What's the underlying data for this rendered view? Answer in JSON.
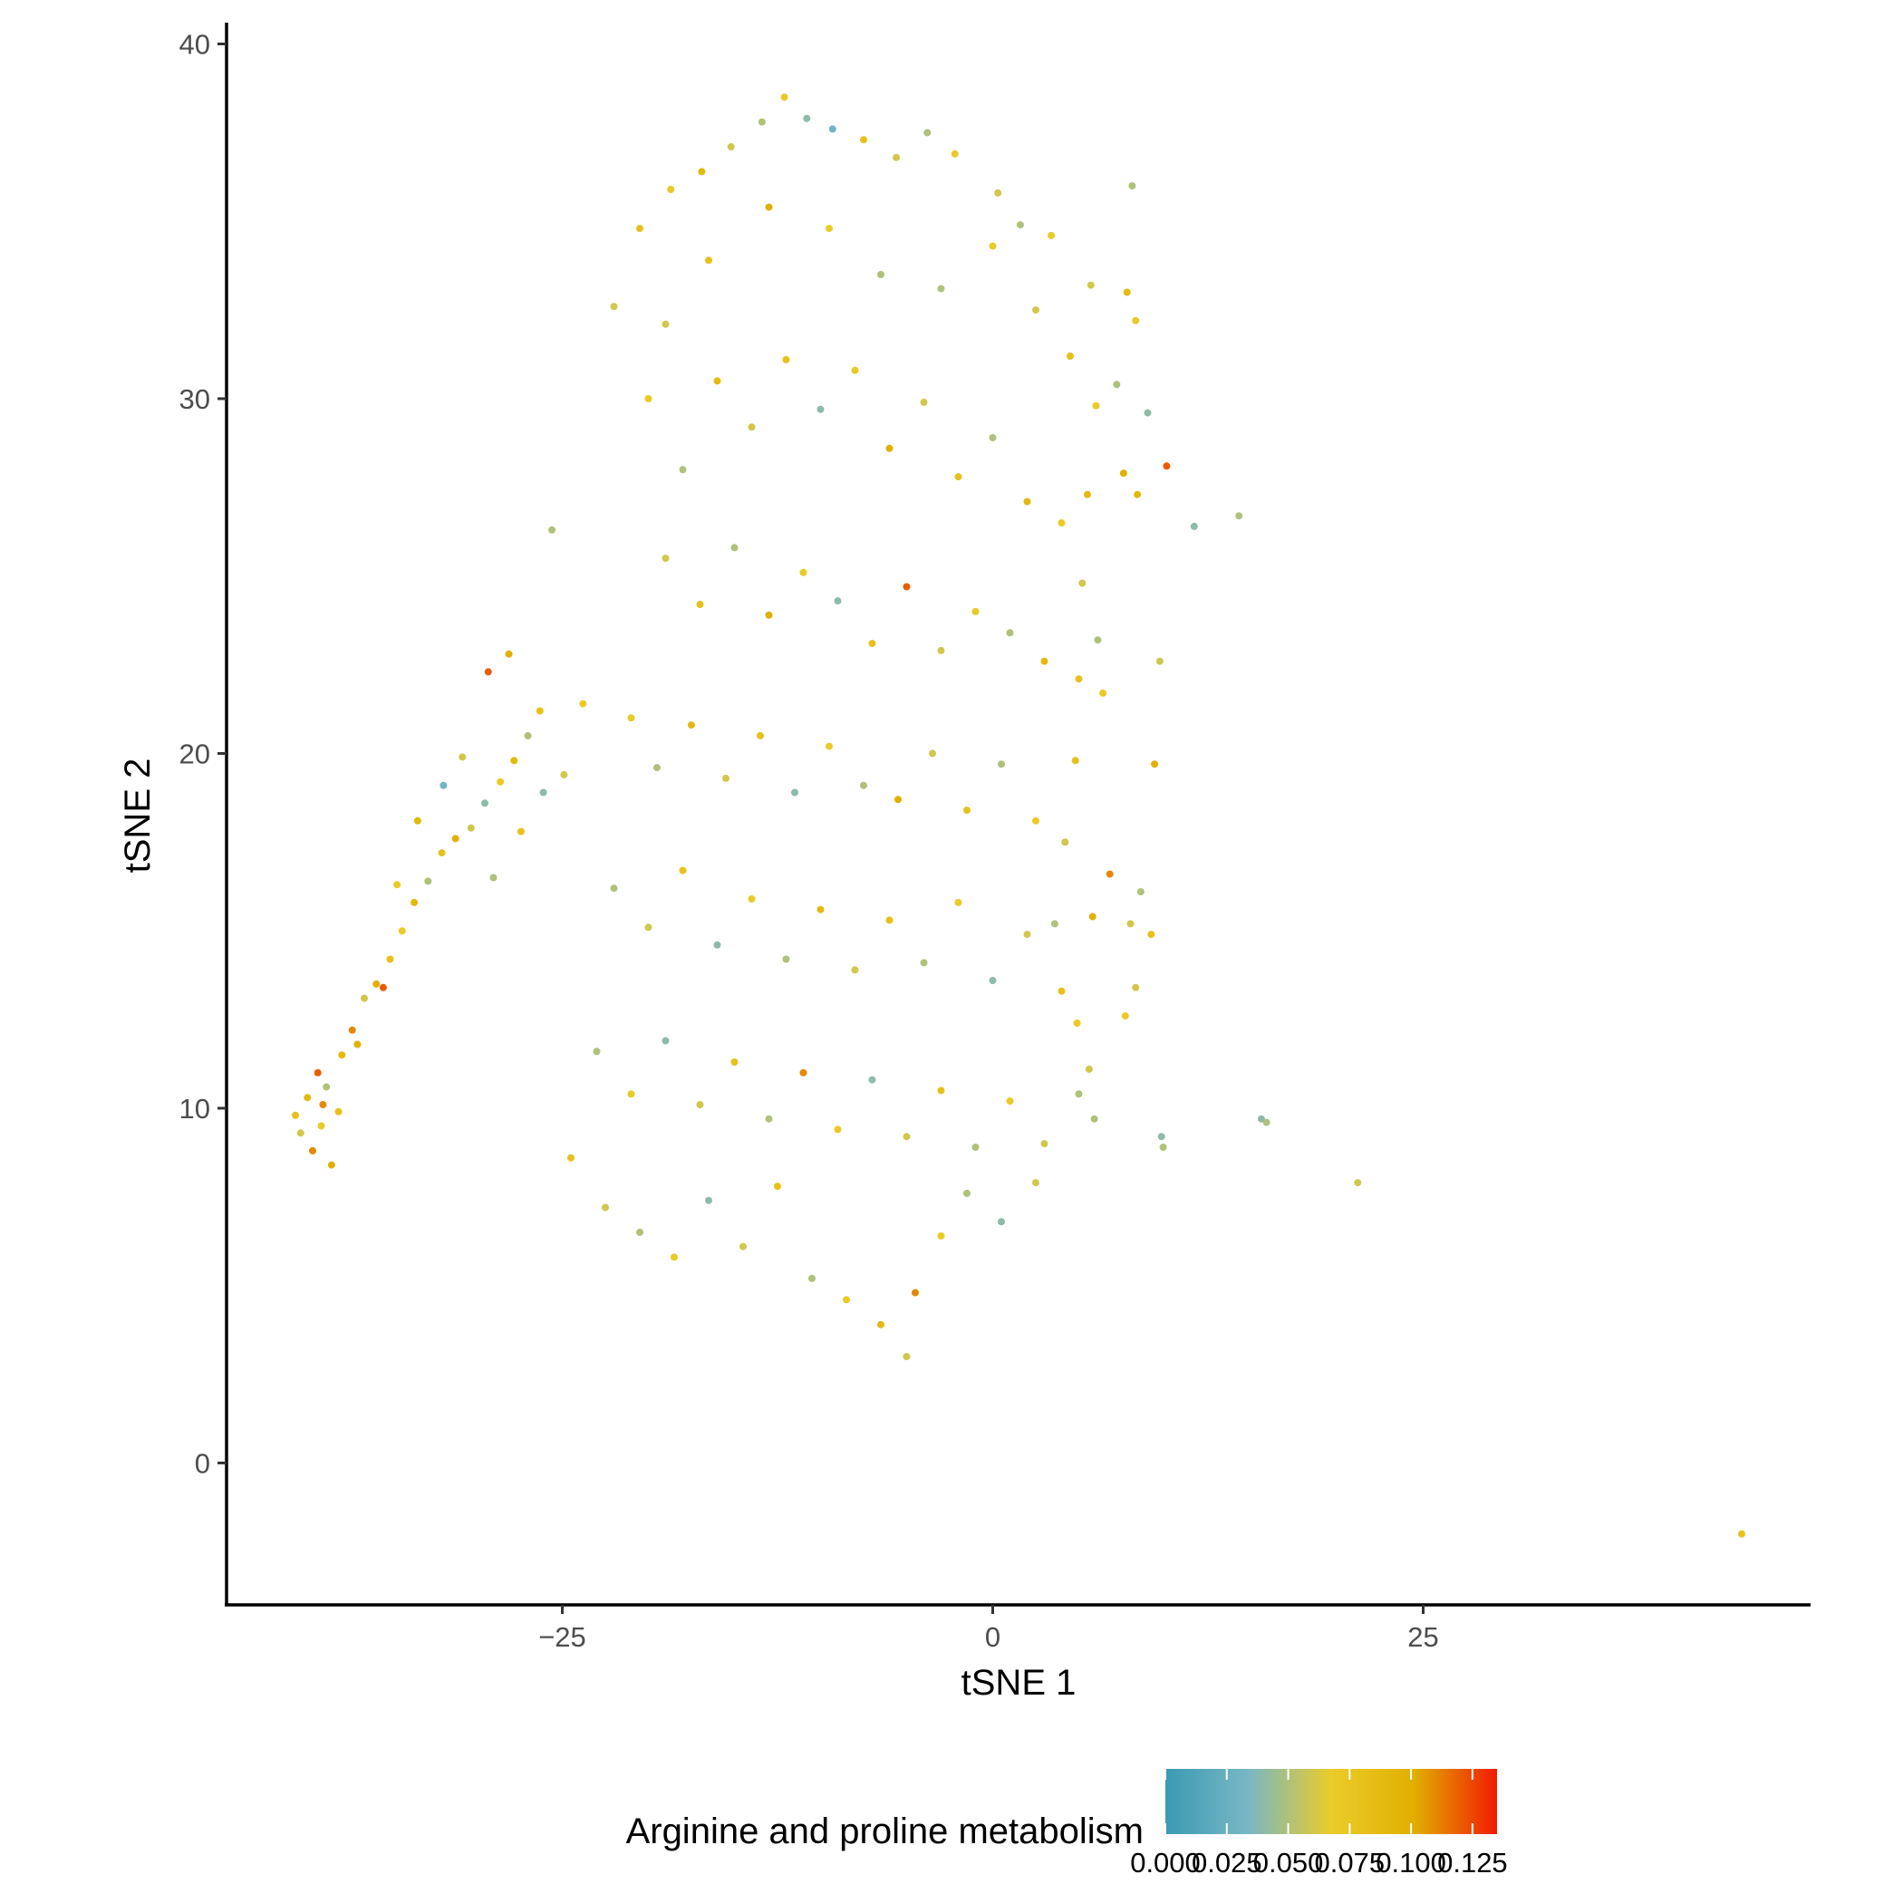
{
  "chart_data": {
    "type": "scatter",
    "title": "",
    "xlabel": "tSNE 1",
    "ylabel": "tSNE 2",
    "xlim": [
      -44.5,
      47.5
    ],
    "ylim": [
      -4,
      40.6
    ],
    "x_ticks": [
      {
        "value": -25,
        "label": "−25"
      },
      {
        "value": 0,
        "label": "0"
      },
      {
        "value": 25,
        "label": "25"
      }
    ],
    "y_ticks": [
      {
        "value": 0,
        "label": "0"
      },
      {
        "value": 10,
        "label": "10"
      },
      {
        "value": 20,
        "label": "20"
      },
      {
        "value": 30,
        "label": "30"
      },
      {
        "value": 40,
        "label": "40"
      }
    ],
    "grid": false,
    "legend": {
      "title": "Arginine and proline metabolism",
      "placement": "bottom",
      "type": "colorbar",
      "range": [
        0.0,
        0.135
      ],
      "ticks": [
        {
          "value": 0.0,
          "label": "0.000"
        },
        {
          "value": 0.025,
          "label": "0.025"
        },
        {
          "value": 0.05,
          "label": "0.050"
        },
        {
          "value": 0.075,
          "label": "0.075"
        },
        {
          "value": 0.1,
          "label": "0.100"
        },
        {
          "value": 0.125,
          "label": "0.125"
        }
      ],
      "colors": [
        "#3B9AB2",
        "#78B7C5",
        "#EBCC2A",
        "#E1AF00",
        "#F21A00"
      ]
    },
    "points": [
      [
        -40.5,
        9.8,
        0.08
      ],
      [
        -40.2,
        9.3,
        0.06
      ],
      [
        -39.8,
        10.3,
        0.09
      ],
      [
        -39.5,
        8.8,
        0.11
      ],
      [
        -39.0,
        9.5,
        0.07
      ],
      [
        -38.7,
        10.6,
        0.05
      ],
      [
        -38.4,
        8.4,
        0.1
      ],
      [
        -38.0,
        9.9,
        0.08
      ],
      [
        -39.2,
        11.0,
        0.12
      ],
      [
        -37.8,
        11.5,
        0.09
      ],
      [
        -37.2,
        12.2,
        0.11
      ],
      [
        -36.5,
        13.1,
        0.06
      ],
      [
        -35.8,
        13.5,
        0.1
      ],
      [
        -35.0,
        14.2,
        0.08
      ],
      [
        -34.3,
        15.0,
        0.07
      ],
      [
        -33.6,
        15.8,
        0.09
      ],
      [
        -32.8,
        16.4,
        0.05
      ],
      [
        -32.0,
        17.2,
        0.08
      ],
      [
        -31.2,
        17.6,
        0.1
      ],
      [
        -30.3,
        17.9,
        0.06
      ],
      [
        -29.5,
        18.6,
        0.04
      ],
      [
        -28.6,
        19.2,
        0.07
      ],
      [
        -27.8,
        19.8,
        0.09
      ],
      [
        -27.0,
        20.5,
        0.05
      ],
      [
        -26.3,
        21.2,
        0.08
      ],
      [
        -28.1,
        22.8,
        0.1
      ],
      [
        -29.3,
        22.3,
        0.12
      ],
      [
        -30.8,
        19.9,
        0.06
      ],
      [
        -31.9,
        19.1,
        0.03
      ],
      [
        -33.4,
        18.1,
        0.09
      ],
      [
        -34.6,
        16.3,
        0.07
      ],
      [
        -35.4,
        13.4,
        0.12
      ],
      [
        -36.9,
        11.8,
        0.1
      ],
      [
        -38.9,
        10.1,
        0.11
      ],
      [
        -29.0,
        16.5,
        0.05
      ],
      [
        -27.4,
        17.8,
        0.08
      ],
      [
        -26.1,
        18.9,
        0.04
      ],
      [
        -24.9,
        19.4,
        0.06
      ],
      [
        -23.8,
        21.4,
        0.07
      ],
      [
        -25.6,
        26.3,
        0.05
      ],
      [
        -22.0,
        32.6,
        0.06
      ],
      [
        -20.5,
        34.8,
        0.08
      ],
      [
        -18.7,
        35.9,
        0.07
      ],
      [
        -16.9,
        36.4,
        0.09
      ],
      [
        -15.2,
        37.1,
        0.06
      ],
      [
        -13.4,
        37.8,
        0.05
      ],
      [
        -12.1,
        38.5,
        0.07
      ],
      [
        -10.8,
        37.9,
        0.04
      ],
      [
        -9.3,
        37.6,
        0.03
      ],
      [
        -7.5,
        37.3,
        0.08
      ],
      [
        -5.6,
        36.8,
        0.06
      ],
      [
        -3.8,
        37.5,
        0.05
      ],
      [
        -2.2,
        36.9,
        0.07
      ],
      [
        0.3,
        35.8,
        0.06
      ],
      [
        1.6,
        34.9,
        0.05
      ],
      [
        3.4,
        34.6,
        0.07
      ],
      [
        5.7,
        33.2,
        0.06
      ],
      [
        7.8,
        33.0,
        0.09
      ],
      [
        8.3,
        32.2,
        0.07
      ],
      [
        8.1,
        36.0,
        0.05
      ],
      [
        7.2,
        30.4,
        0.05
      ],
      [
        9.0,
        29.6,
        0.04
      ],
      [
        7.6,
        27.9,
        0.1
      ],
      [
        8.4,
        27.3,
        0.09
      ],
      [
        10.1,
        28.1,
        0.12
      ],
      [
        11.7,
        26.4,
        0.04
      ],
      [
        14.3,
        26.7,
        0.05
      ],
      [
        9.7,
        22.6,
        0.06
      ],
      [
        9.4,
        19.7,
        0.1
      ],
      [
        8.0,
        15.2,
        0.06
      ],
      [
        8.6,
        16.1,
        0.05
      ],
      [
        9.2,
        14.9,
        0.08
      ],
      [
        8.3,
        13.4,
        0.06
      ],
      [
        7.7,
        12.6,
        0.07
      ],
      [
        6.8,
        16.6,
        0.11
      ],
      [
        5.8,
        15.4,
        0.1
      ],
      [
        9.8,
        9.2,
        0.04
      ],
      [
        9.9,
        8.9,
        0.05
      ],
      [
        15.6,
        9.7,
        0.04
      ],
      [
        15.9,
        9.6,
        0.05
      ],
      [
        21.2,
        7.9,
        0.06
      ],
      [
        43.5,
        -2.0,
        0.08
      ],
      [
        -20.0,
        30.0,
        0.07
      ],
      [
        -18.0,
        28.0,
        0.05
      ],
      [
        -16.0,
        30.5,
        0.09
      ],
      [
        -14.0,
        29.2,
        0.06
      ],
      [
        -12.0,
        31.1,
        0.08
      ],
      [
        -10.0,
        29.7,
        0.04
      ],
      [
        -8.0,
        30.8,
        0.07
      ],
      [
        -6.0,
        28.6,
        0.1
      ],
      [
        -4.0,
        29.9,
        0.06
      ],
      [
        -2.0,
        27.8,
        0.08
      ],
      [
        0.0,
        28.9,
        0.05
      ],
      [
        2.0,
        27.1,
        0.09
      ],
      [
        4.0,
        26.5,
        0.07
      ],
      [
        -19.0,
        25.5,
        0.06
      ],
      [
        -17.0,
        24.2,
        0.08
      ],
      [
        -15.0,
        25.8,
        0.05
      ],
      [
        -13.0,
        23.9,
        0.1
      ],
      [
        -11.0,
        25.1,
        0.07
      ],
      [
        -9.0,
        24.3,
        0.04
      ],
      [
        -7.0,
        23.1,
        0.08
      ],
      [
        -5.0,
        24.7,
        0.12
      ],
      [
        -3.0,
        22.9,
        0.06
      ],
      [
        -1.0,
        24.0,
        0.07
      ],
      [
        1.0,
        23.4,
        0.05
      ],
      [
        3.0,
        22.6,
        0.09
      ],
      [
        5.0,
        22.1,
        0.08
      ],
      [
        -21.0,
        21.0,
        0.07
      ],
      [
        -19.5,
        19.6,
        0.05
      ],
      [
        -17.5,
        20.8,
        0.09
      ],
      [
        -15.5,
        19.3,
        0.06
      ],
      [
        -13.5,
        20.5,
        0.08
      ],
      [
        -11.5,
        18.9,
        0.04
      ],
      [
        -9.5,
        20.2,
        0.07
      ],
      [
        -7.5,
        19.1,
        0.05
      ],
      [
        -5.5,
        18.7,
        0.1
      ],
      [
        -3.5,
        20.0,
        0.06
      ],
      [
        -1.5,
        18.4,
        0.08
      ],
      [
        0.5,
        19.7,
        0.05
      ],
      [
        2.5,
        18.1,
        0.07
      ],
      [
        -22.0,
        16.2,
        0.05
      ],
      [
        -20.0,
        15.1,
        0.06
      ],
      [
        -18.0,
        16.7,
        0.08
      ],
      [
        -16.0,
        14.6,
        0.04
      ],
      [
        -14.0,
        15.9,
        0.07
      ],
      [
        -12.0,
        14.2,
        0.05
      ],
      [
        -10.0,
        15.6,
        0.09
      ],
      [
        -8.0,
        13.9,
        0.06
      ],
      [
        -6.0,
        15.3,
        0.08
      ],
      [
        -4.0,
        14.1,
        0.05
      ],
      [
        -2.0,
        15.8,
        0.07
      ],
      [
        0.0,
        13.6,
        0.04
      ],
      [
        2.0,
        14.9,
        0.06
      ],
      [
        4.0,
        13.3,
        0.08
      ],
      [
        -23.0,
        11.6,
        0.05
      ],
      [
        -21.0,
        10.4,
        0.07
      ],
      [
        -19.0,
        11.9,
        0.04
      ],
      [
        -17.0,
        10.1,
        0.06
      ],
      [
        -15.0,
        11.3,
        0.08
      ],
      [
        -13.0,
        9.7,
        0.05
      ],
      [
        -11.0,
        11.0,
        0.11
      ],
      [
        -9.0,
        9.4,
        0.07
      ],
      [
        -7.0,
        10.8,
        0.04
      ],
      [
        -5.0,
        9.2,
        0.06
      ],
      [
        -3.0,
        10.5,
        0.08
      ],
      [
        -1.0,
        8.9,
        0.05
      ],
      [
        1.0,
        10.2,
        0.07
      ],
      [
        3.0,
        9.0,
        0.06
      ],
      [
        5.0,
        10.4,
        0.05
      ],
      [
        -24.5,
        8.6,
        0.08
      ],
      [
        -22.5,
        7.2,
        0.06
      ],
      [
        -20.5,
        6.5,
        0.05
      ],
      [
        -18.5,
        5.8,
        0.07
      ],
      [
        -16.5,
        7.4,
        0.04
      ],
      [
        -14.5,
        6.1,
        0.06
      ],
      [
        -12.5,
        7.8,
        0.08
      ],
      [
        -10.5,
        5.2,
        0.05
      ],
      [
        -8.5,
        4.6,
        0.07
      ],
      [
        -6.5,
        3.9,
        0.09
      ],
      [
        -5.0,
        3.0,
        0.06
      ],
      [
        -4.5,
        4.8,
        0.11
      ],
      [
        -3.0,
        6.4,
        0.07
      ],
      [
        -1.5,
        7.6,
        0.05
      ],
      [
        0.5,
        6.8,
        0.04
      ],
      [
        2.5,
        7.9,
        0.06
      ],
      [
        -6.5,
        33.5,
        0.05
      ],
      [
        -9.5,
        34.8,
        0.07
      ],
      [
        -13.0,
        35.4,
        0.1
      ],
      [
        -16.5,
        33.9,
        0.08
      ],
      [
        -19.0,
        32.1,
        0.06
      ],
      [
        -3.0,
        33.1,
        0.05
      ],
      [
        0.0,
        34.3,
        0.07
      ],
      [
        2.5,
        32.5,
        0.06
      ],
      [
        4.5,
        31.2,
        0.08
      ],
      [
        6.0,
        29.8,
        0.07
      ],
      [
        5.5,
        27.3,
        0.09
      ],
      [
        5.2,
        24.8,
        0.06
      ],
      [
        6.1,
        23.2,
        0.05
      ],
      [
        6.4,
        21.7,
        0.07
      ],
      [
        4.8,
        19.8,
        0.08
      ],
      [
        4.2,
        17.5,
        0.06
      ],
      [
        3.6,
        15.2,
        0.05
      ],
      [
        4.9,
        12.4,
        0.07
      ],
      [
        5.6,
        11.1,
        0.06
      ],
      [
        5.9,
        9.7,
        0.05
      ]
    ]
  }
}
